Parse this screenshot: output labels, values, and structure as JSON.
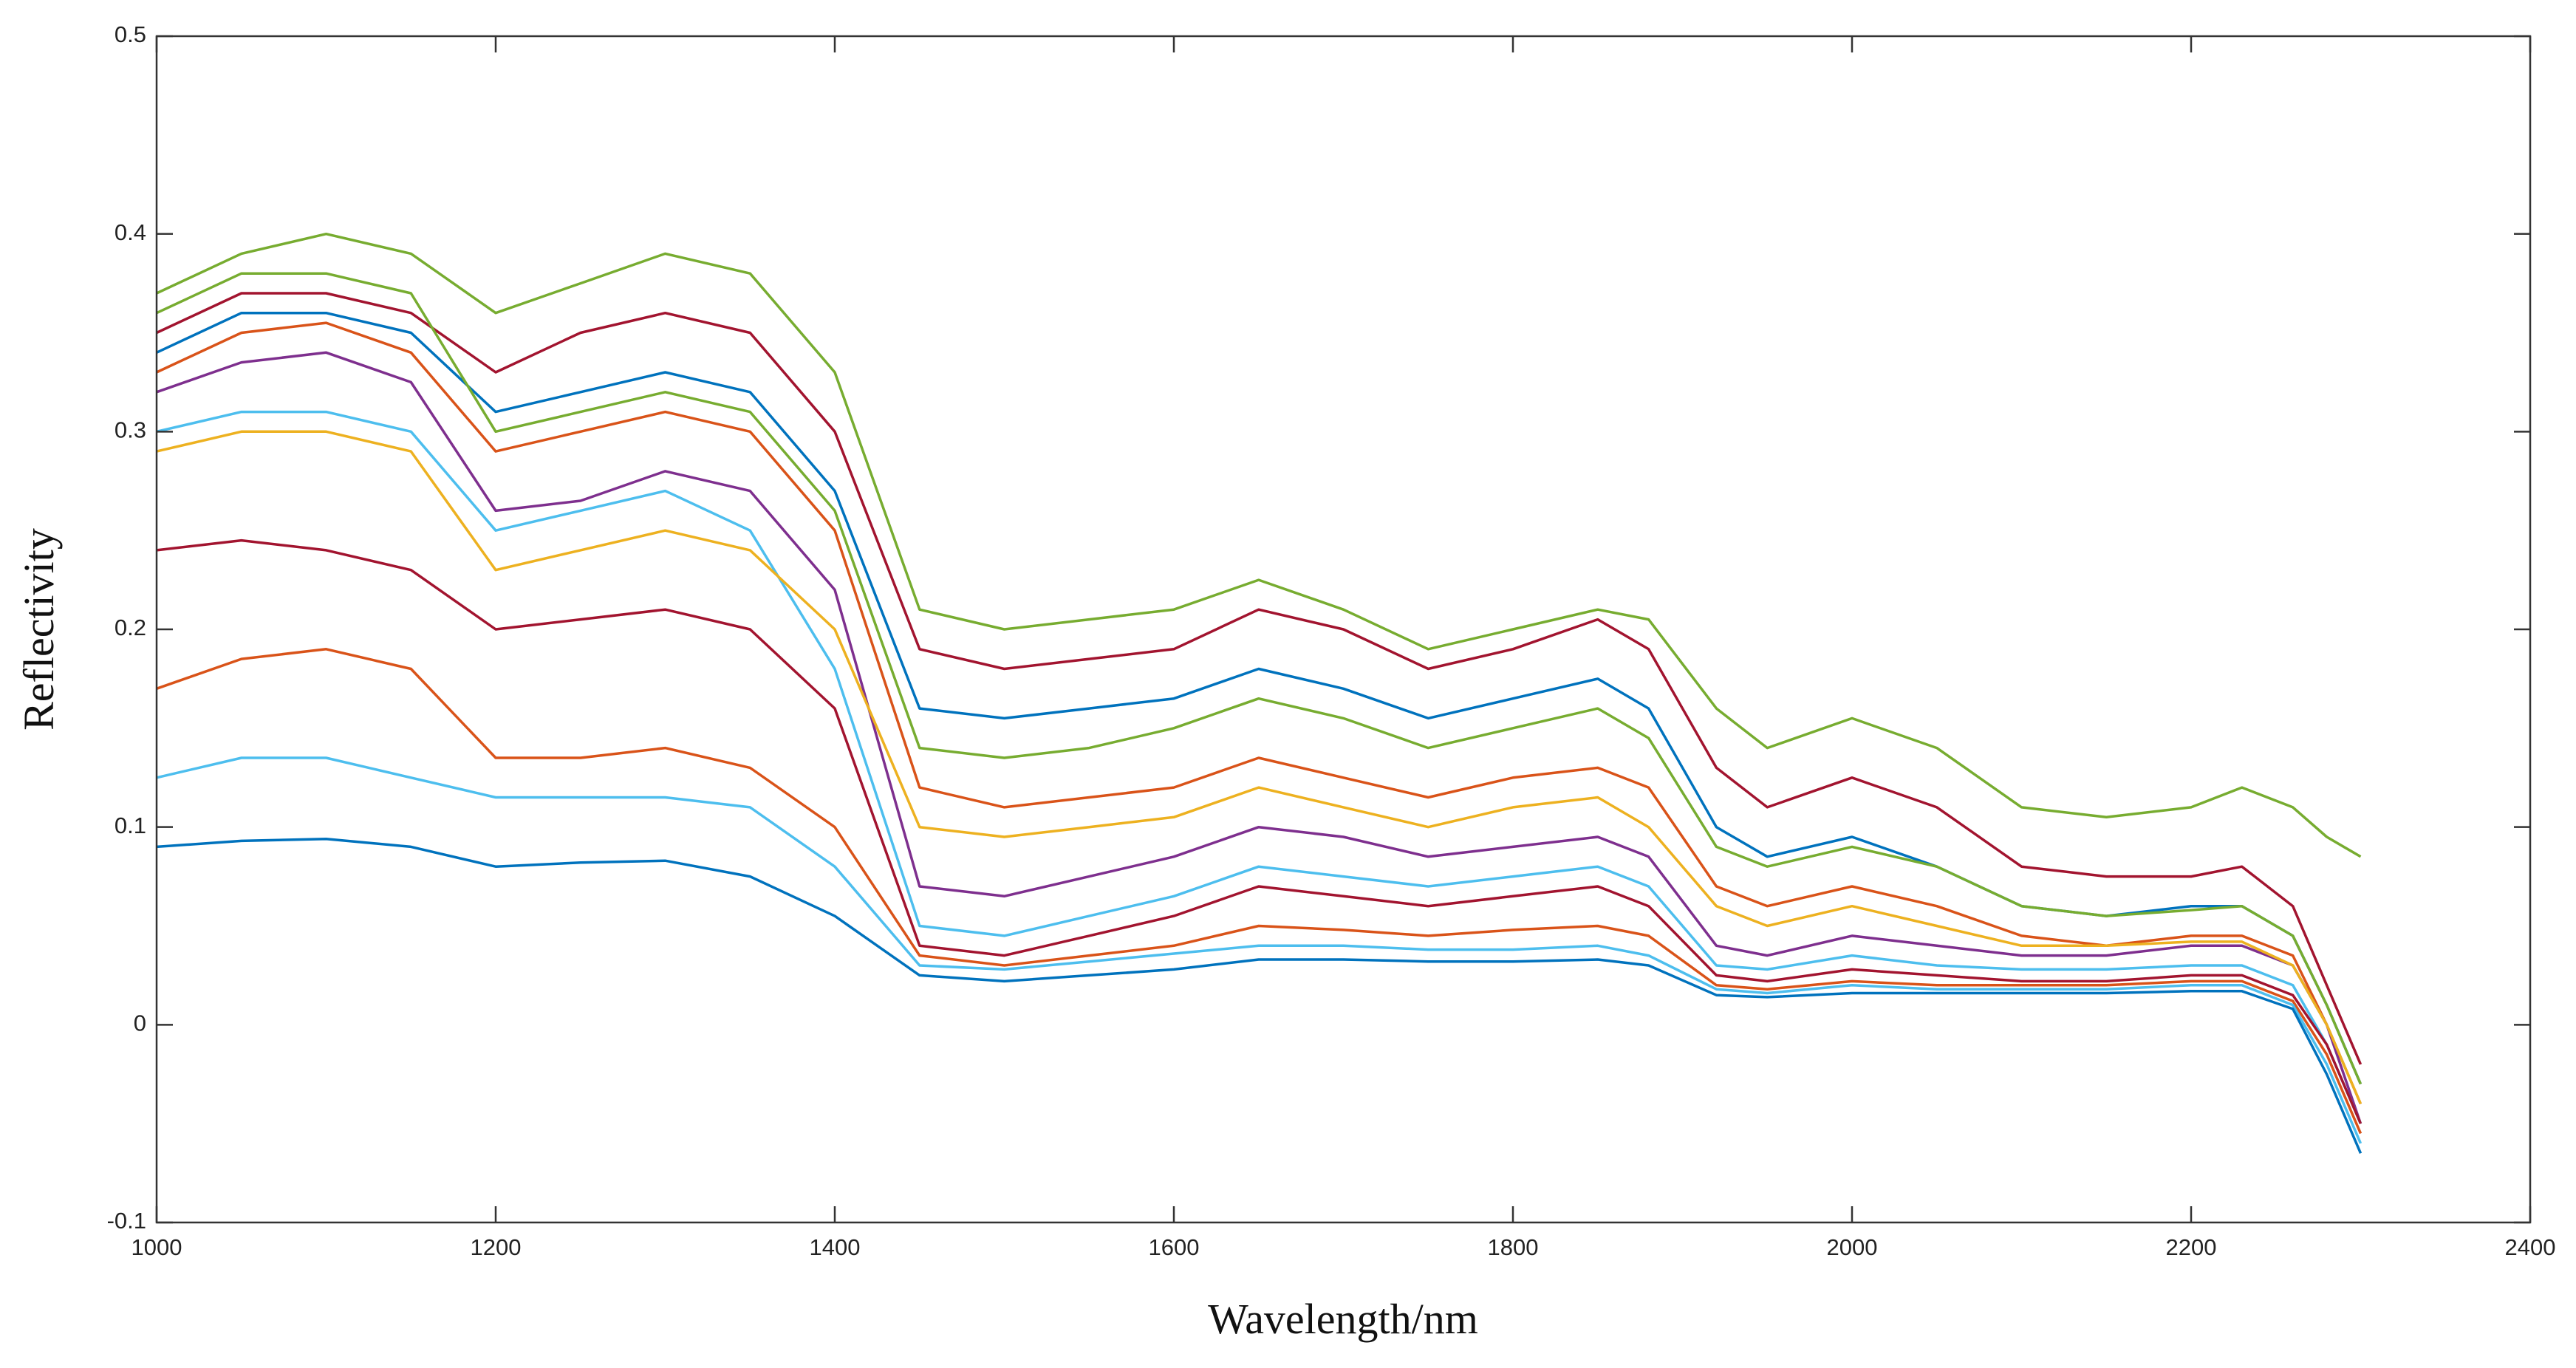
{
  "chart_data": {
    "type": "line",
    "x_label": "Wavelength/nm",
    "y_label": "Reflectivity",
    "x": [
      1000,
      1050,
      1100,
      1150,
      1200,
      1250,
      1300,
      1350,
      1400,
      1450,
      1500,
      1550,
      1600,
      1650,
      1700,
      1750,
      1800,
      1850,
      1880,
      1920,
      1950,
      2000,
      2050,
      2100,
      2150,
      2200,
      2230,
      2260,
      2280,
      2300
    ],
    "series": [
      {
        "color": "#77ac30",
        "values": [
          0.37,
          0.39,
          0.4,
          0.39,
          0.36,
          0.375,
          0.39,
          0.38,
          0.33,
          0.21,
          0.2,
          0.205,
          0.21,
          0.225,
          0.21,
          0.19,
          0.2,
          0.21,
          0.205,
          0.16,
          0.14,
          0.155,
          0.14,
          0.11,
          0.105,
          0.11,
          0.12,
          0.11,
          0.095,
          0.085
        ]
      },
      {
        "color": "#a2142f",
        "values": [
          0.35,
          0.37,
          0.37,
          0.36,
          0.33,
          0.35,
          0.36,
          0.35,
          0.3,
          0.19,
          0.18,
          0.185,
          0.19,
          0.21,
          0.2,
          0.18,
          0.19,
          0.205,
          0.19,
          0.13,
          0.11,
          0.125,
          0.11,
          0.08,
          0.075,
          0.075,
          0.08,
          0.06,
          0.02,
          -0.02
        ]
      },
      {
        "color": "#0072bd",
        "values": [
          0.34,
          0.36,
          0.36,
          0.35,
          0.31,
          0.32,
          0.33,
          0.32,
          0.27,
          0.16,
          0.155,
          0.16,
          0.165,
          0.18,
          0.17,
          0.155,
          0.165,
          0.175,
          0.16,
          0.1,
          0.085,
          0.095,
          0.08,
          0.06,
          0.055,
          0.06,
          0.06,
          0.045,
          0.01,
          -0.03
        ]
      },
      {
        "color": "#d95319",
        "values": [
          0.33,
          0.35,
          0.355,
          0.34,
          0.29,
          0.3,
          0.31,
          0.3,
          0.25,
          0.12,
          0.11,
          0.115,
          0.12,
          0.135,
          0.125,
          0.115,
          0.125,
          0.13,
          0.12,
          0.07,
          0.06,
          0.07,
          0.06,
          0.045,
          0.04,
          0.045,
          0.045,
          0.035,
          0.0,
          -0.04
        ]
      },
      {
        "color": "#7e2f8e",
        "values": [
          0.32,
          0.335,
          0.34,
          0.325,
          0.26,
          0.265,
          0.28,
          0.27,
          0.22,
          0.07,
          0.065,
          0.075,
          0.085,
          0.1,
          0.095,
          0.085,
          0.09,
          0.095,
          0.085,
          0.04,
          0.035,
          0.045,
          0.04,
          0.035,
          0.035,
          0.04,
          0.04,
          0.03,
          0.0,
          -0.05
        ]
      },
      {
        "color": "#4dbeee",
        "values": [
          0.3,
          0.31,
          0.31,
          0.3,
          0.25,
          0.26,
          0.27,
          0.25,
          0.18,
          0.05,
          0.045,
          0.055,
          0.065,
          0.08,
          0.075,
          0.07,
          0.075,
          0.08,
          0.07,
          0.03,
          0.028,
          0.035,
          0.03,
          0.028,
          0.028,
          0.03,
          0.03,
          0.02,
          -0.01,
          -0.05
        ]
      },
      {
        "color": "#a2142f",
        "values": [
          0.24,
          0.245,
          0.24,
          0.23,
          0.2,
          0.205,
          0.21,
          0.2,
          0.16,
          0.04,
          0.035,
          0.045,
          0.055,
          0.07,
          0.065,
          0.06,
          0.065,
          0.07,
          0.06,
          0.025,
          0.022,
          0.028,
          0.025,
          0.022,
          0.022,
          0.025,
          0.025,
          0.015,
          -0.01,
          -0.05
        ]
      },
      {
        "color": "#d95319",
        "values": [
          0.17,
          0.185,
          0.19,
          0.18,
          0.135,
          0.135,
          0.14,
          0.13,
          0.1,
          0.035,
          0.03,
          0.035,
          0.04,
          0.05,
          0.048,
          0.045,
          0.048,
          0.05,
          0.045,
          0.02,
          0.018,
          0.022,
          0.02,
          0.02,
          0.02,
          0.022,
          0.022,
          0.012,
          -0.015,
          -0.055
        ]
      },
      {
        "color": "#4dbeee",
        "values": [
          0.125,
          0.135,
          0.135,
          0.125,
          0.115,
          0.115,
          0.115,
          0.11,
          0.08,
          0.03,
          0.028,
          0.032,
          0.036,
          0.04,
          0.04,
          0.038,
          0.038,
          0.04,
          0.035,
          0.018,
          0.016,
          0.02,
          0.018,
          0.018,
          0.018,
          0.02,
          0.02,
          0.01,
          -0.02,
          -0.06
        ]
      },
      {
        "color": "#0072bd",
        "values": [
          0.09,
          0.093,
          0.094,
          0.09,
          0.08,
          0.082,
          0.083,
          0.075,
          0.055,
          0.025,
          0.022,
          0.025,
          0.028,
          0.033,
          0.033,
          0.032,
          0.032,
          0.033,
          0.03,
          0.015,
          0.014,
          0.016,
          0.016,
          0.016,
          0.016,
          0.017,
          0.017,
          0.008,
          -0.025,
          -0.065
        ]
      },
      {
        "color": "#edb120",
        "values": [
          0.29,
          0.3,
          0.3,
          0.29,
          0.23,
          0.24,
          0.25,
          0.24,
          0.2,
          0.1,
          0.095,
          0.1,
          0.105,
          0.12,
          0.11,
          0.1,
          0.11,
          0.115,
          0.1,
          0.06,
          0.05,
          0.06,
          0.05,
          0.04,
          0.04,
          0.042,
          0.042,
          0.03,
          0.0,
          -0.04
        ]
      },
      {
        "color": "#77ac30",
        "values": [
          0.36,
          0.38,
          0.38,
          0.37,
          0.3,
          0.31,
          0.32,
          0.31,
          0.26,
          0.14,
          0.135,
          0.14,
          0.15,
          0.165,
          0.155,
          0.14,
          0.15,
          0.16,
          0.145,
          0.09,
          0.08,
          0.09,
          0.08,
          0.06,
          0.055,
          0.058,
          0.06,
          0.045,
          0.01,
          -0.03
        ]
      }
    ],
    "xlim": [
      1000,
      2400
    ],
    "xticks": [
      1000,
      1200,
      1400,
      1600,
      1800,
      2000,
      2200,
      2400
    ],
    "ylim": [
      -0.1,
      0.5
    ],
    "yticks": [
      -0.1,
      0,
      0.1,
      0.2,
      0.3,
      0.4,
      0.5
    ],
    "grid": false
  }
}
